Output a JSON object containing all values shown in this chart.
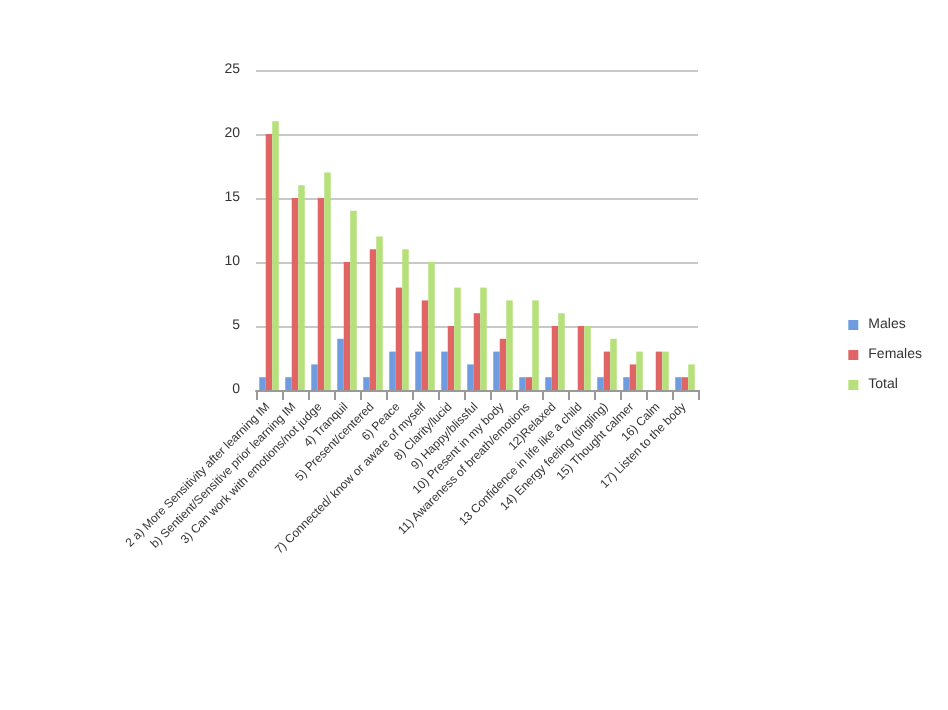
{
  "chart_data": {
    "type": "bar",
    "categories": [
      "2 a) More Sensitivity after learning IM",
      "b) Sentient/Sensitive prior learning IM",
      "3) Can work with emotions/not judge",
      "4) Tranquil",
      "5) Present/centered",
      "6) Peace",
      "7) Connected/ know or aware of myself",
      "8) Clarity/lucid",
      "9) Happy/blissful",
      "10) Present in my body",
      "11) Awareness of breath/emotions",
      "12)Relaxed",
      "13 Confidence in life like a child",
      "14) Energy feeling (tingling)",
      "15) Thought calmer",
      "16) Calm",
      "17) Listen to the body"
    ],
    "series": [
      {
        "name": "Males",
        "color": "#6f9be0",
        "values": [
          1,
          1,
          2,
          4,
          1,
          3,
          3,
          3,
          2,
          3,
          1,
          1,
          0,
          1,
          1,
          0,
          1
        ]
      },
      {
        "name": "Females",
        "color": "#e06666",
        "values": [
          20,
          15,
          15,
          10,
          11,
          8,
          7,
          5,
          6,
          4,
          1,
          5,
          5,
          3,
          2,
          3,
          1
        ]
      },
      {
        "name": "Total",
        "color": "#b5e07a",
        "values": [
          21,
          16,
          17,
          14,
          12,
          11,
          10,
          8,
          8,
          7,
          7,
          6,
          5,
          4,
          3,
          3,
          2
        ]
      }
    ],
    "ylim": [
      0,
      25
    ],
    "yticks": [
      0,
      5,
      10,
      15,
      20,
      25
    ],
    "grid": "y",
    "legend": "right"
  }
}
